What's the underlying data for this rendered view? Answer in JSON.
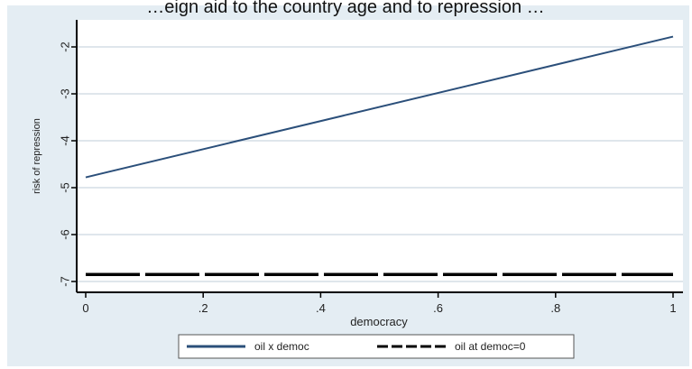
{
  "chart_data": {
    "type": "line",
    "title": "…eign aid to the country age and to repression …",
    "xlabel": "democracy",
    "ylabel": "risk of repression",
    "xlim": [
      0,
      1
    ],
    "ylim": [
      -7,
      -1.7
    ],
    "x_ticks": [
      "0",
      ".2",
      ".4",
      ".6",
      ".8",
      "1"
    ],
    "y_ticks": [
      "-2",
      "-3",
      "-4",
      "-5",
      "-6",
      "-7"
    ],
    "grid": true,
    "legend_position": "bottom",
    "series": [
      {
        "name": "oil x democ",
        "color": "#2b4f7a",
        "style": "solid",
        "x": [
          0,
          1
        ],
        "y": [
          -4.78,
          -1.78
        ]
      },
      {
        "name": "oil at democ=0",
        "color": "#000000",
        "style": "dashed",
        "x": [
          0,
          1
        ],
        "y": [
          -6.85,
          -6.85
        ]
      }
    ]
  }
}
